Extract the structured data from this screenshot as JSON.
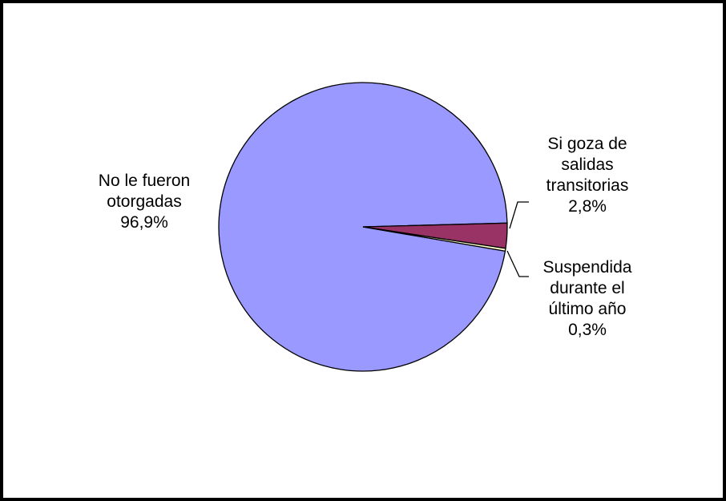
{
  "chart_data": {
    "type": "pie",
    "categories": [
      "No le fueron otorgadas",
      "Si goza de salidas transitorias",
      "Suspendida durante el último año"
    ],
    "values": [
      96.9,
      2.8,
      0.3
    ],
    "value_labels": [
      "96,9%",
      "2,8%",
      "0,3%"
    ],
    "colors": [
      "#9999ff",
      "#993366",
      "#ffffcc"
    ]
  }
}
